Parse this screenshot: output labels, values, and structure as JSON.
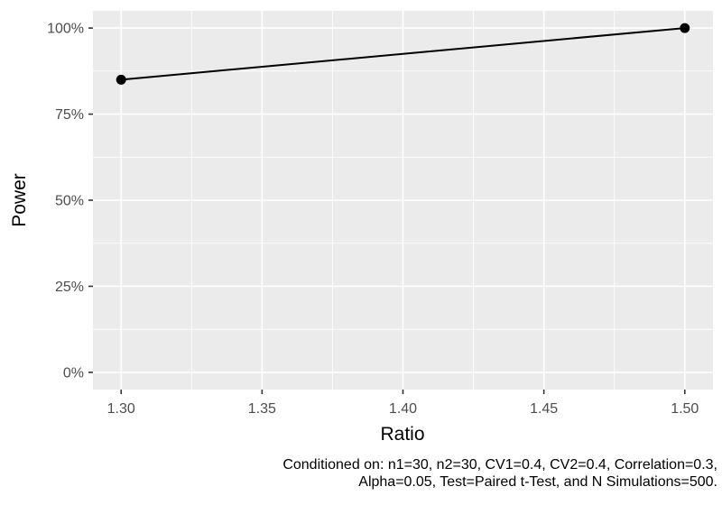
{
  "chart_data": {
    "type": "line",
    "series_name": "Power",
    "x": [
      1.3,
      1.5
    ],
    "y": [
      0.85,
      1.0
    ],
    "xlabel": "Ratio",
    "ylabel": "Power",
    "x_ticks": [
      1.3,
      1.35,
      1.4,
      1.45,
      1.5
    ],
    "x_tick_labels": [
      "1.30",
      "1.35",
      "1.40",
      "1.45",
      "1.50"
    ],
    "y_ticks": [
      0,
      0.25,
      0.5,
      0.75,
      1.0
    ],
    "y_tick_labels": [
      "0%",
      "25%",
      "50%",
      "75%",
      "100%"
    ],
    "xlim": [
      1.29,
      1.51
    ],
    "ylim": [
      -0.05,
      1.05
    ],
    "grid": true,
    "legend": "none",
    "caption_lines": [
      "Conditioned on: n1=30, n2=30, CV1=0.4, CV2=0.4, Correlation=0.3,",
      "Alpha=0.05, Test=Paired t-Test, and N Simulations=500."
    ],
    "colors": {
      "panel_background": "#EBEBEB",
      "grid": "#FFFFFF",
      "axis_text": "#4D4D4D",
      "tick_mark": "#333333",
      "line": "#000000",
      "point": "#000000",
      "title_text": "#000000"
    }
  }
}
